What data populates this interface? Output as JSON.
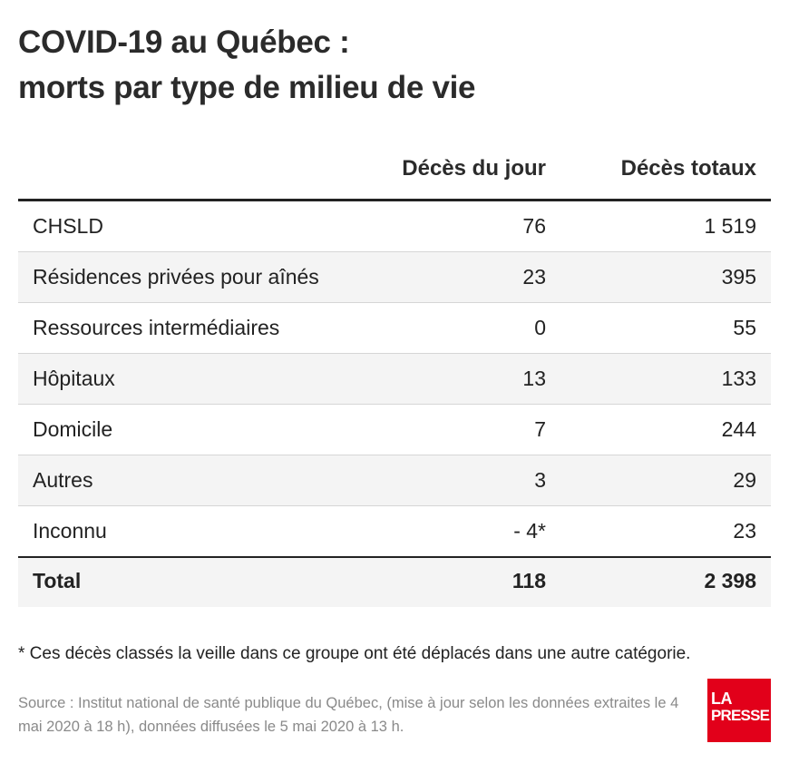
{
  "title": {
    "line1": "COVID-19 au Québec :",
    "line2": "morts par type de milieu de vie"
  },
  "table": {
    "headers": {
      "col1": "",
      "col2": "Décès du jour",
      "col3": "Décès totaux"
    },
    "rows": [
      {
        "label": "CHSLD",
        "daily": "76",
        "total": "1 519"
      },
      {
        "label": "Résidences privées pour aînés",
        "daily": "23",
        "total": "395"
      },
      {
        "label": "Ressources intermédiaires",
        "daily": "0",
        "total": "55"
      },
      {
        "label": "Hôpitaux",
        "daily": "13",
        "total": "133"
      },
      {
        "label": "Domicile",
        "daily": "7",
        "total": "244"
      },
      {
        "label": "Autres",
        "daily": "3",
        "total": "29"
      },
      {
        "label": "Inconnu",
        "daily": "- 4*",
        "total": "23"
      }
    ],
    "total": {
      "label": "Total",
      "daily": "118",
      "total": "2 398"
    }
  },
  "footnote": "* Ces décès classés la veille dans ce groupe ont été déplacés dans une autre catégorie.",
  "source": "Source : Institut national de santé publique du Québec, (mise à jour selon les données extraites le 4 mai 2020 à 18 h), données diffusées le 5 mai 2020 à 13 h.",
  "logo": {
    "line1": "LA",
    "line2": "PRESSE"
  },
  "colors": {
    "brand": "#e2001a",
    "text": "#222222",
    "source_text": "#8a8a8a",
    "row_shade": "#f4f4f4"
  }
}
